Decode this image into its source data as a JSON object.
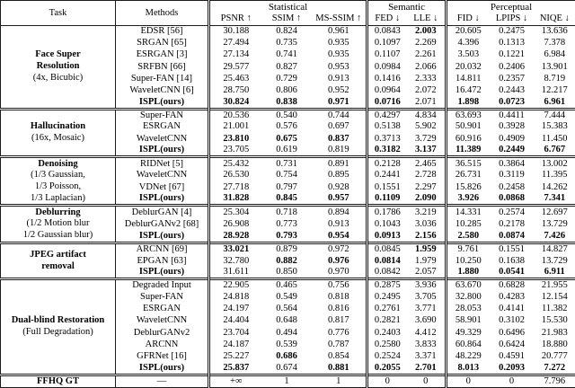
{
  "page": {
    "background": "#ffffff",
    "text_color": "#000000"
  },
  "table": {
    "headers": {
      "task": "Task",
      "methods": "Methods",
      "groups": [
        {
          "label": "Statistical",
          "span": 3
        },
        {
          "label": "Semantic",
          "span": 2
        },
        {
          "label": "Perceptual",
          "span": 3
        }
      ],
      "metrics": [
        "PSNR ↑",
        "SSIM ↑",
        "MS-SSIM ↑",
        "FED ↓",
        "LLE ↓",
        "FID ↓",
        "LPIPS ↓",
        "NIQE ↓"
      ]
    },
    "task_groups": [
      {
        "task_lines": [
          {
            "text": "Face Super",
            "bold": true
          },
          {
            "text": "Resolution",
            "bold": true
          },
          {
            "text": "(4x, Bicubic)",
            "bold": false
          }
        ],
        "rows": [
          {
            "method": "EDSR [56]",
            "method_bold": false,
            "values": [
              "30.188",
              "0.824",
              "0.961",
              "0.0843",
              "2.003",
              "20.605",
              "0.2475",
              "13.636"
            ],
            "bold": [
              false,
              false,
              false,
              false,
              true,
              false,
              false,
              false
            ]
          },
          {
            "method": "SRGAN [65]",
            "method_bold": false,
            "values": [
              "27.494",
              "0.735",
              "0.935",
              "0.1097",
              "2.269",
              "4.396",
              "0.1313",
              "7.378"
            ],
            "bold": [
              false,
              false,
              false,
              false,
              false,
              false,
              false,
              false
            ]
          },
          {
            "method": "ESRGAN [3]",
            "method_bold": false,
            "values": [
              "27.134",
              "0.741",
              "0.935",
              "0.1107",
              "2.261",
              "3.503",
              "0.1221",
              "6.984"
            ],
            "bold": [
              false,
              false,
              false,
              false,
              false,
              false,
              false,
              false
            ]
          },
          {
            "method": "SRFBN [66]",
            "method_bold": false,
            "values": [
              "29.577",
              "0.827",
              "0.953",
              "0.0984",
              "2.066",
              "20.032",
              "0.2406",
              "13.901"
            ],
            "bold": [
              false,
              false,
              false,
              false,
              false,
              false,
              false,
              false
            ]
          },
          {
            "method": "Super-FAN [14]",
            "method_bold": false,
            "values": [
              "25.463",
              "0.729",
              "0.913",
              "0.1416",
              "2.333",
              "14.811",
              "0.2357",
              "8.719"
            ],
            "bold": [
              false,
              false,
              false,
              false,
              false,
              false,
              false,
              false
            ]
          },
          {
            "method": "WaveletCNN [6]",
            "method_bold": false,
            "values": [
              "28.750",
              "0.806",
              "0.952",
              "0.0964",
              "2.072",
              "16.472",
              "0.2443",
              "12.217"
            ],
            "bold": [
              false,
              false,
              false,
              false,
              false,
              false,
              false,
              false
            ]
          },
          {
            "method": "ISPL(ours)",
            "method_bold": true,
            "values": [
              "30.824",
              "0.838",
              "0.971",
              "0.0716",
              "2.071",
              "1.898",
              "0.0723",
              "6.961"
            ],
            "bold": [
              true,
              true,
              true,
              true,
              false,
              true,
              true,
              true
            ]
          }
        ]
      },
      {
        "task_lines": [
          {
            "text": "Hallucination",
            "bold": true
          },
          {
            "text": "(16x, Mosaic)",
            "bold": false
          }
        ],
        "rows": [
          {
            "method": "Super-FAN",
            "method_bold": false,
            "values": [
              "20.536",
              "0.540",
              "0.744",
              "0.4297",
              "4.834",
              "63.693",
              "0.4411",
              "7.444"
            ],
            "bold": [
              false,
              false,
              false,
              false,
              false,
              false,
              false,
              false
            ]
          },
          {
            "method": "ESRGAN",
            "method_bold": false,
            "values": [
              "21.001",
              "0.576",
              "0.697",
              "0.5138",
              "5.902",
              "50.901",
              "0.3928",
              "15.383"
            ],
            "bold": [
              false,
              false,
              false,
              false,
              false,
              false,
              false,
              false
            ]
          },
          {
            "method": "WaveletCNN",
            "method_bold": false,
            "values": [
              "23.810",
              "0.675",
              "0.837",
              "0.3713",
              "3.729",
              "60.916",
              "0.4909",
              "11.450"
            ],
            "bold": [
              true,
              true,
              true,
              false,
              false,
              false,
              false,
              false
            ]
          },
          {
            "method": "ISPL(ours)",
            "method_bold": true,
            "values": [
              "23.705",
              "0.619",
              "0.819",
              "0.3182",
              "3.137",
              "11.389",
              "0.2449",
              "6.767"
            ],
            "bold": [
              false,
              false,
              false,
              true,
              true,
              true,
              true,
              true
            ]
          }
        ]
      },
      {
        "task_lines": [
          {
            "text": "Denoising",
            "bold": true
          },
          {
            "text": "(1/3 Gaussian,",
            "bold": false
          },
          {
            "text": "1/3 Poisson,",
            "bold": false
          },
          {
            "text": "1/3 Laplacian)",
            "bold": false
          }
        ],
        "rows": [
          {
            "method": "RIDNet [5]",
            "method_bold": false,
            "values": [
              "25.432",
              "0.731",
              "0.891",
              "0.2128",
              "2.465",
              "36.515",
              "0.3864",
              "13.002"
            ],
            "bold": [
              false,
              false,
              false,
              false,
              false,
              false,
              false,
              false
            ]
          },
          {
            "method": "WaveletCNN",
            "method_bold": false,
            "values": [
              "26.530",
              "0.754",
              "0.895",
              "0.2441",
              "2.728",
              "26.731",
              "0.3119",
              "11.395"
            ],
            "bold": [
              false,
              false,
              false,
              false,
              false,
              false,
              false,
              false
            ]
          },
          {
            "method": "VDNet [67]",
            "method_bold": false,
            "values": [
              "27.718",
              "0.797",
              "0.928",
              "0.1551",
              "2.297",
              "15.826",
              "0.2458",
              "14.262"
            ],
            "bold": [
              false,
              false,
              false,
              false,
              false,
              false,
              false,
              false
            ]
          },
          {
            "method": "ISPL(ours)",
            "method_bold": true,
            "values": [
              "31.828",
              "0.845",
              "0.957",
              "0.1109",
              "2.090",
              "3.926",
              "0.0868",
              "7.341"
            ],
            "bold": [
              true,
              true,
              true,
              true,
              true,
              true,
              true,
              true
            ]
          }
        ]
      },
      {
        "task_lines": [
          {
            "text": "Deblurring",
            "bold": true
          },
          {
            "text": "(1/2 Motion blur",
            "bold": false
          },
          {
            "text": "1/2 Gaussian blur)",
            "bold": false
          }
        ],
        "rows": [
          {
            "method": "DeblurGAN [4]",
            "method_bold": false,
            "values": [
              "25.304",
              "0.718",
              "0.894",
              "0.1786",
              "3.219",
              "14.331",
              "0.2574",
              "12.697"
            ],
            "bold": [
              false,
              false,
              false,
              false,
              false,
              false,
              false,
              false
            ]
          },
          {
            "method": "DeblurGANv2 [68]",
            "method_bold": false,
            "values": [
              "26.908",
              "0.773",
              "0.913",
              "0.1043",
              "3.036",
              "10.285",
              "0.2178",
              "13.729"
            ],
            "bold": [
              false,
              false,
              false,
              false,
              false,
              false,
              false,
              false
            ]
          },
          {
            "method": "ISPL(ours)",
            "method_bold": true,
            "values": [
              "28.928",
              "0.793",
              "0.954",
              "0.0913",
              "2.156",
              "2.580",
              "0.0874",
              "7.426"
            ],
            "bold": [
              true,
              true,
              true,
              true,
              true,
              true,
              true,
              true
            ]
          }
        ]
      },
      {
        "task_lines": [
          {
            "text": "JPEG artifact",
            "bold": true
          },
          {
            "text": "removal",
            "bold": true
          }
        ],
        "rows": [
          {
            "method": "ARCNN [69]",
            "method_bold": false,
            "values": [
              "33.021",
              "0.879",
              "0.972",
              "0.0845",
              "1.959",
              "9.761",
              "0.1551",
              "14.827"
            ],
            "bold": [
              true,
              false,
              false,
              false,
              true,
              false,
              false,
              false
            ]
          },
          {
            "method": "EPGAN [63]",
            "method_bold": false,
            "values": [
              "32.780",
              "0.882",
              "0.976",
              "0.0814",
              "1.979",
              "10.250",
              "0.1638",
              "13.729"
            ],
            "bold": [
              false,
              true,
              true,
              true,
              false,
              false,
              false,
              false
            ]
          },
          {
            "method": "ISPL(ours)",
            "method_bold": true,
            "values": [
              "31.611",
              "0.850",
              "0.970",
              "0.0842",
              "2.057",
              "1.880",
              "0.0541",
              "6.911"
            ],
            "bold": [
              false,
              false,
              false,
              false,
              false,
              true,
              true,
              true
            ]
          }
        ]
      },
      {
        "task_lines": [
          {
            "text": "Dual-blind Restoration",
            "bold": true
          },
          {
            "text": "(Full Degradation)",
            "bold": false
          }
        ],
        "rows": [
          {
            "method": "Degraded Input",
            "method_bold": false,
            "values": [
              "22.905",
              "0.465",
              "0.756",
              "0.2875",
              "3.936",
              "63.670",
              "0.6828",
              "21.955"
            ],
            "bold": [
              false,
              false,
              false,
              false,
              false,
              false,
              false,
              false
            ]
          },
          {
            "method": "Super-FAN",
            "method_bold": false,
            "values": [
              "24.818",
              "0.549",
              "0.818",
              "0.2495",
              "3.705",
              "32.800",
              "0.4283",
              "12.154"
            ],
            "bold": [
              false,
              false,
              false,
              false,
              false,
              false,
              false,
              false
            ]
          },
          {
            "method": "ESRGAN",
            "method_bold": false,
            "values": [
              "24.197",
              "0.564",
              "0.816",
              "0.2761",
              "3.771",
              "28.053",
              "0.4141",
              "11.382"
            ],
            "bold": [
              false,
              false,
              false,
              false,
              false,
              false,
              false,
              false
            ]
          },
          {
            "method": "WaveletCNN",
            "method_bold": false,
            "values": [
              "24.404",
              "0.648",
              "0.817",
              "0.2821",
              "3.690",
              "58.901",
              "0.3102",
              "15.530"
            ],
            "bold": [
              false,
              false,
              false,
              false,
              false,
              false,
              false,
              false
            ]
          },
          {
            "method": "DeblurGANv2",
            "method_bold": false,
            "values": [
              "23.704",
              "0.494",
              "0.776",
              "0.2403",
              "4.412",
              "49.329",
              "0.6496",
              "21.983"
            ],
            "bold": [
              false,
              false,
              false,
              false,
              false,
              false,
              false,
              false
            ]
          },
          {
            "method": "ARCNN",
            "method_bold": false,
            "values": [
              "24.187",
              "0.539",
              "0.787",
              "0.2580",
              "3.833",
              "60.864",
              "0.6424",
              "18.880"
            ],
            "bold": [
              false,
              false,
              false,
              false,
              false,
              false,
              false,
              false
            ]
          },
          {
            "method": "GFRNet [16]",
            "method_bold": false,
            "values": [
              "25.227",
              "0.686",
              "0.854",
              "0.2524",
              "3.371",
              "48.229",
              "0.4591",
              "20.777"
            ],
            "bold": [
              false,
              true,
              false,
              false,
              false,
              false,
              false,
              false
            ]
          },
          {
            "method": "ISPL(ours)",
            "method_bold": true,
            "values": [
              "25.837",
              "0.674",
              "0.881",
              "0.2055",
              "2.701",
              "8.013",
              "0.2093",
              "7.272"
            ],
            "bold": [
              true,
              false,
              true,
              true,
              true,
              true,
              true,
              true
            ]
          }
        ]
      }
    ],
    "footer_row": {
      "task": "FFHQ GT",
      "method": "—",
      "values": [
        "+∞",
        "1",
        "1",
        "0",
        "0",
        "0",
        "0",
        "7.796"
      ],
      "bold": [
        false,
        false,
        false,
        false,
        false,
        false,
        false,
        false
      ]
    }
  }
}
